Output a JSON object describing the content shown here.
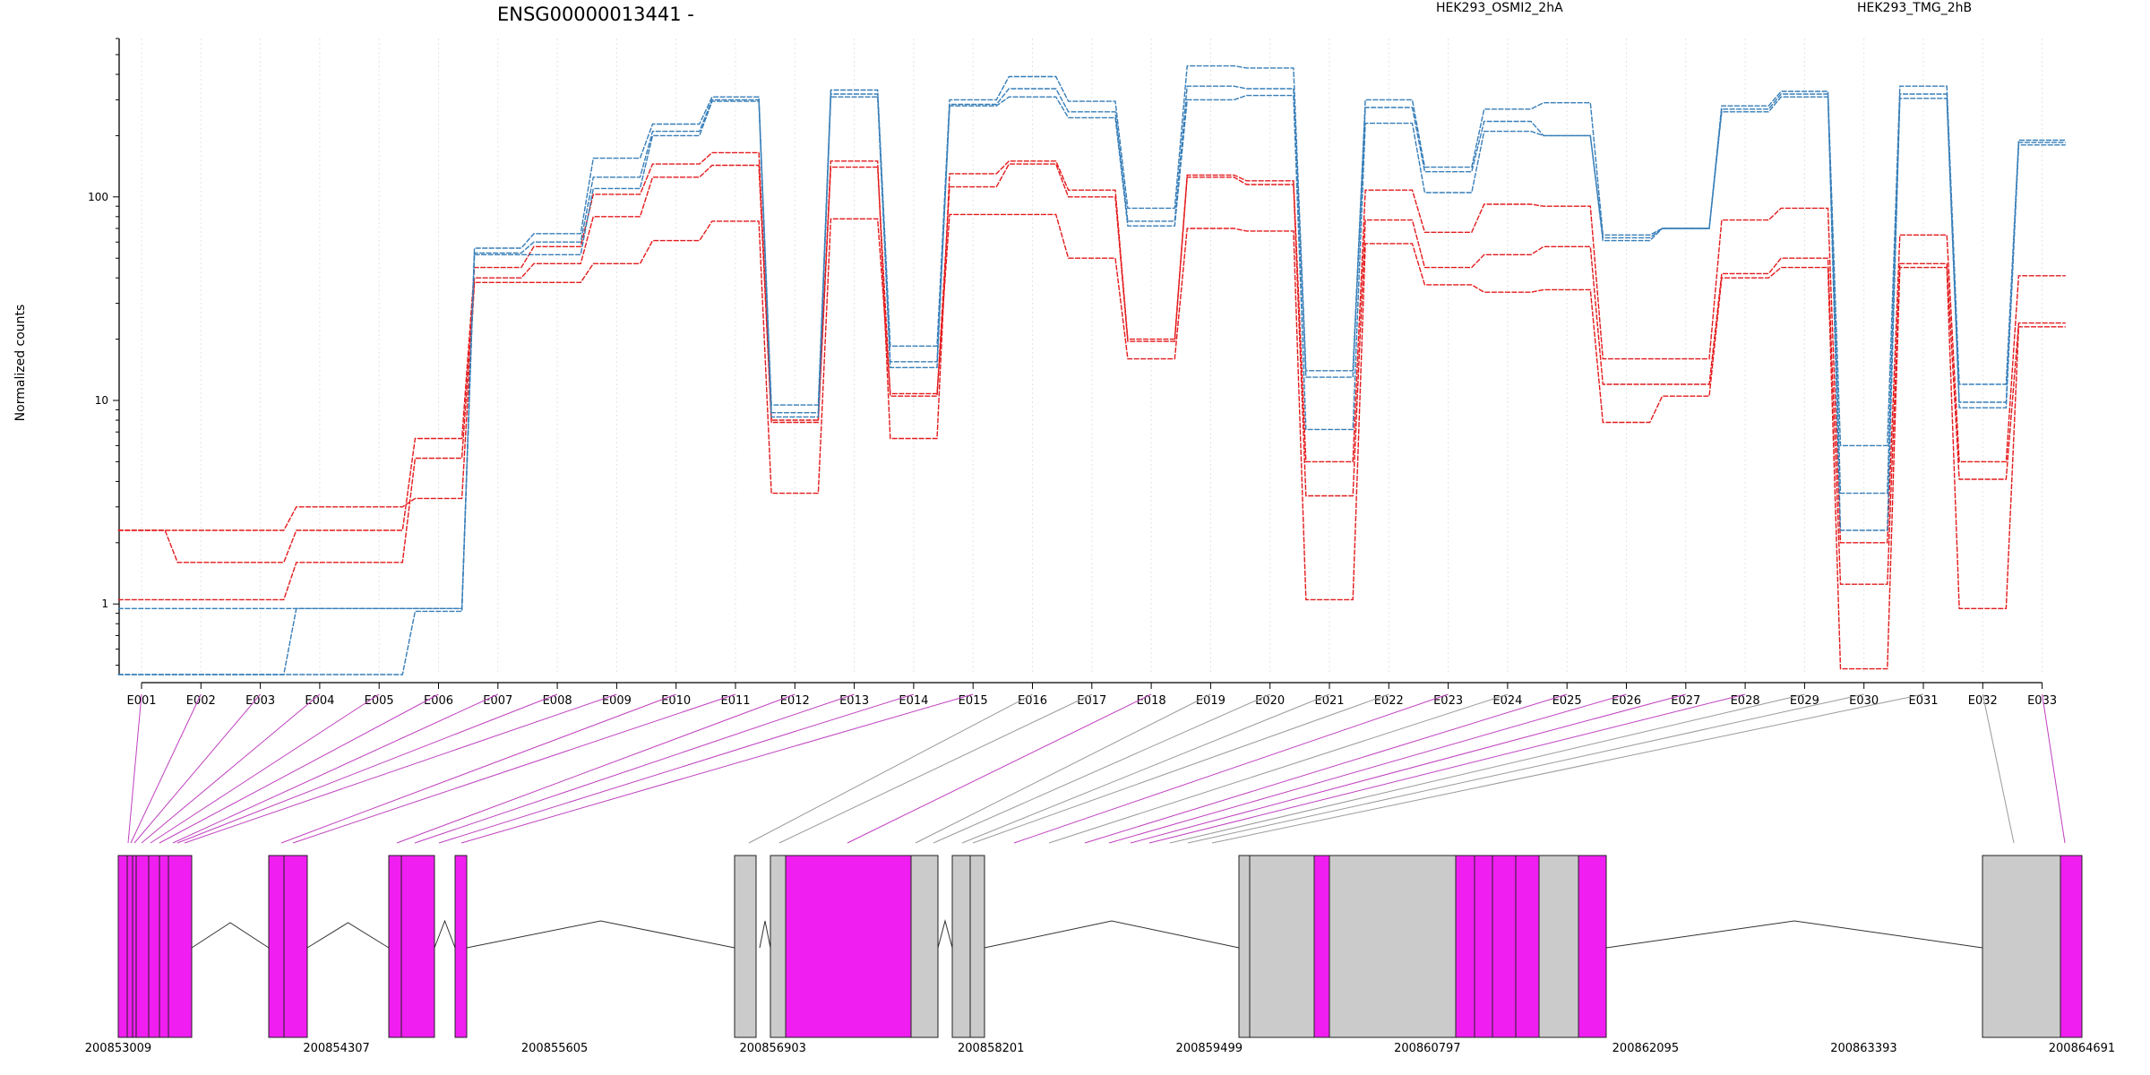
{
  "chart_data": {
    "type": "line",
    "title": "ENSG00000013441 -",
    "ylabel": "Normalized counts",
    "xlabel": "",
    "y_scale": "log",
    "ylim": [
      0.45,
      600
    ],
    "y_ticks": [
      {
        "value": 1,
        "label": "1"
      },
      {
        "value": 10,
        "label": "10"
      },
      {
        "value": 100,
        "label": "100"
      }
    ],
    "grid": "vertical dotted lines at each exon",
    "legend_placement": "top",
    "categories": [
      "E001",
      "E002",
      "E003",
      "E004",
      "E005",
      "E006",
      "E007",
      "E008",
      "E009",
      "E010",
      "E011",
      "E012",
      "E013",
      "E014",
      "E015",
      "E016",
      "E017",
      "E018",
      "E019",
      "E020",
      "E021",
      "E022",
      "E023",
      "E024",
      "E025",
      "E026",
      "E027",
      "E028",
      "E029",
      "E030",
      "E031",
      "E032",
      "E033"
    ],
    "groups": [
      {
        "name": "HEK293_OSMI2_2hA",
        "color": "#e41a1c"
      },
      {
        "name": "HEK293_TMG_2hB",
        "color": "#377eb8"
      }
    ],
    "series": [
      {
        "group": "HEK293_OSMI2_2hA",
        "color": "#e41a1c",
        "values": [
          2.3,
          1.6,
          1.6,
          2.3,
          2.3,
          6.5,
          45,
          57,
          103,
          145,
          165,
          8,
          150,
          6.5,
          130,
          150,
          108,
          20,
          128,
          120,
          5,
          108,
          67,
          92,
          90,
          16,
          16,
          77,
          88,
          2.0,
          65,
          5,
          41
        ]
      },
      {
        "group": "HEK293_OSMI2_2hA",
        "color": "#e41a1c",
        "values": [
          1.05,
          1.05,
          1.05,
          1.6,
          1.6,
          5.2,
          40,
          47,
          80,
          125,
          143,
          7.8,
          140,
          10.5,
          112,
          145,
          100,
          19.5,
          125,
          115,
          3.4,
          77,
          45,
          52,
          57,
          12,
          12,
          42,
          50,
          1.25,
          47,
          4.1,
          24
        ]
      },
      {
        "group": "HEK293_OSMI2_2hA",
        "color": "#e41a1c",
        "values": [
          2.3,
          2.3,
          2.3,
          3,
          3,
          3.3,
          38,
          38,
          47,
          61,
          76,
          3.5,
          78,
          10.8,
          82,
          82,
          50,
          16,
          70,
          68,
          1.05,
          59,
          37,
          34,
          35,
          7.8,
          10.5,
          40,
          45,
          0.48,
          45,
          0.95,
          23
        ]
      },
      {
        "group": "HEK293_TMG_2hB",
        "color": "#377eb8",
        "values": [
          0.95,
          0.95,
          0.95,
          0.95,
          0.95,
          0.95,
          56,
          66,
          155,
          228,
          310,
          9.5,
          335,
          18.5,
          300,
          390,
          295,
          88,
          440,
          430,
          14,
          300,
          140,
          270,
          290,
          65,
          70,
          280,
          330,
          6,
          350,
          12,
          190
        ]
      },
      {
        "group": "HEK293_TMG_2hB",
        "color": "#377eb8",
        "values": [
          0.45,
          0.45,
          0.45,
          0.95,
          0.95,
          0.95,
          53,
          60,
          125,
          210,
          300,
          8.7,
          320,
          15.5,
          285,
          340,
          262,
          76,
          350,
          340,
          13,
          275,
          133,
          235,
          200,
          63,
          70,
          270,
          320,
          3.5,
          320,
          9.8,
          185
        ]
      },
      {
        "group": "HEK293_TMG_2hB",
        "color": "#377eb8",
        "values": [
          0.45,
          0.45,
          0.45,
          0.45,
          0.45,
          0.92,
          52,
          52,
          110,
          200,
          295,
          8.3,
          310,
          14.5,
          280,
          310,
          245,
          72,
          300,
          315,
          7.2,
          230,
          105,
          210,
          200,
          61,
          70,
          262,
          310,
          2.3,
          305,
          9.2,
          180
        ]
      }
    ],
    "exon_connections": {
      "colors": {
        "magenta": "#c040c0",
        "gray": "#9a9a9a"
      },
      "kinds": [
        "magenta",
        "magenta",
        "magenta",
        "magenta",
        "magenta",
        "magenta",
        "magenta",
        "magenta",
        "magenta",
        "magenta",
        "magenta",
        "magenta",
        "magenta",
        "magenta",
        "magenta",
        "gray",
        "gray",
        "magenta",
        "gray",
        "gray",
        "gray",
        "gray",
        "magenta",
        "gray",
        "magenta",
        "magenta",
        "magenta",
        "magenta",
        "gray",
        "gray",
        "gray",
        "gray",
        "magenta"
      ]
    },
    "gene_model": {
      "positions": [
        "200853009",
        "200854307",
        "200855605",
        "200856903",
        "200858201",
        "200859499",
        "200860797",
        "200862095",
        "200863393",
        "200864691"
      ],
      "exon_fill_magenta": "#f01ef0",
      "exon_fill_gray": "#cbcbcb"
    }
  }
}
